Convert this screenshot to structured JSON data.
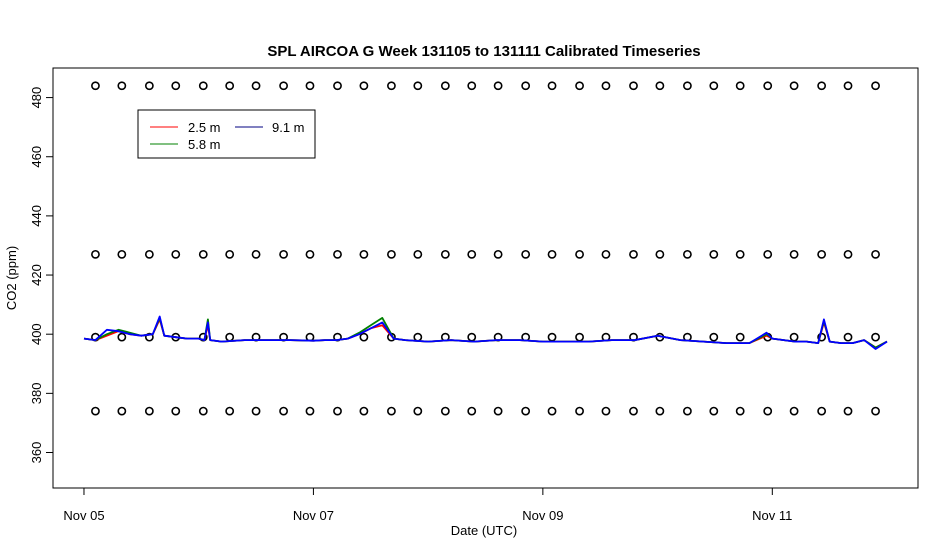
{
  "chart_data": {
    "type": "line",
    "title": "SPL AIRCOA G  Week 131105 to 131111  Calibrated Timeseries",
    "xlabel": "Date (UTC)",
    "ylabel": "CO2 (ppm)",
    "x_ticks": [
      {
        "value": 0,
        "label": "Nov 05"
      },
      {
        "value": 2,
        "label": "Nov 07"
      },
      {
        "value": 4,
        "label": "Nov 09"
      },
      {
        "value": 6,
        "label": "Nov 11"
      }
    ],
    "y_ticks": [
      360,
      380,
      400,
      420,
      440,
      460,
      480
    ],
    "xlim": [
      -0.27,
      7.27
    ],
    "ylim": [
      348,
      490
    ],
    "grid": false,
    "legend_position": "top-left",
    "legend": [
      {
        "label": "2.5 m",
        "color": "#ff0000"
      },
      {
        "label": "5.8 m",
        "color": "#008000"
      },
      {
        "label": "9.1 m",
        "color": "#000080"
      }
    ],
    "series": [
      {
        "name": "2.5 m",
        "color": "#ff0000",
        "x": [
          0.0,
          0.1,
          0.2,
          0.3,
          0.4,
          0.5,
          0.6,
          0.66,
          0.7,
          0.8,
          0.9,
          1.0,
          1.05,
          1.08,
          1.1,
          1.2,
          1.4,
          1.6,
          1.8,
          2.0,
          2.1,
          2.2,
          2.3,
          2.4,
          2.5,
          2.6,
          2.7,
          2.8,
          3.0,
          3.2,
          3.4,
          3.6,
          3.8,
          4.0,
          4.2,
          4.4,
          4.6,
          4.8,
          5.0,
          5.2,
          5.4,
          5.6,
          5.8,
          5.95,
          6.0,
          6.1,
          6.2,
          6.3,
          6.4,
          6.45,
          6.5,
          6.6,
          6.7,
          6.8,
          6.9,
          7.0
        ],
        "y": [
          398.5,
          398,
          399.5,
          401,
          400,
          399.5,
          400,
          405,
          399.5,
          399,
          398.5,
          398.5,
          398,
          403,
          398,
          397.5,
          398,
          398,
          398,
          397.8,
          398,
          398,
          398.5,
          400,
          402,
          403,
          398.5,
          398,
          397.5,
          398,
          397.5,
          398,
          398,
          397.5,
          397.5,
          397.5,
          398,
          398,
          399.5,
          398,
          397.5,
          397,
          397,
          399.5,
          398.5,
          398,
          397.5,
          397.5,
          397,
          404,
          397.5,
          397,
          397,
          398,
          395.5,
          397.5
        ]
      },
      {
        "name": "5.8 m",
        "color": "#008000",
        "x": [
          0.0,
          0.1,
          0.2,
          0.3,
          0.4,
          0.5,
          0.6,
          0.66,
          0.7,
          0.8,
          0.9,
          1.0,
          1.05,
          1.08,
          1.1,
          1.2,
          1.4,
          1.6,
          1.8,
          2.0,
          2.1,
          2.2,
          2.3,
          2.4,
          2.5,
          2.6,
          2.7,
          2.8,
          3.0,
          3.2,
          3.4,
          3.6,
          3.8,
          4.0,
          4.2,
          4.4,
          4.6,
          4.8,
          5.0,
          5.2,
          5.4,
          5.6,
          5.8,
          5.95,
          6.0,
          6.1,
          6.2,
          6.3,
          6.4,
          6.45,
          6.5,
          6.6,
          6.7,
          6.8,
          6.9,
          7.0
        ],
        "y": [
          398.5,
          398,
          400,
          401.5,
          400.5,
          399.5,
          400,
          405.5,
          399.5,
          399,
          398.5,
          398.5,
          398,
          405,
          398,
          397.5,
          398,
          398,
          398,
          397.8,
          398,
          398,
          398.5,
          400.5,
          403,
          405.5,
          398.5,
          398,
          397.5,
          398,
          397.5,
          398,
          398,
          397.5,
          397.5,
          397.5,
          398,
          398,
          399.5,
          398,
          397.5,
          397,
          397,
          400,
          398.5,
          398,
          397.5,
          397.5,
          397,
          404.5,
          397.5,
          397,
          397,
          398,
          395.5,
          397.5
        ]
      },
      {
        "name": "9.1 m",
        "color": "#0000ff",
        "x": [
          0.0,
          0.1,
          0.2,
          0.3,
          0.4,
          0.5,
          0.6,
          0.66,
          0.7,
          0.8,
          0.9,
          1.0,
          1.05,
          1.08,
          1.1,
          1.2,
          1.4,
          1.6,
          1.8,
          2.0,
          2.1,
          2.2,
          2.3,
          2.4,
          2.5,
          2.6,
          2.7,
          2.8,
          3.0,
          3.2,
          3.4,
          3.6,
          3.8,
          4.0,
          4.2,
          4.4,
          4.6,
          4.8,
          5.0,
          5.2,
          5.4,
          5.6,
          5.8,
          5.95,
          6.0,
          6.1,
          6.2,
          6.3,
          6.4,
          6.45,
          6.5,
          6.6,
          6.7,
          6.8,
          6.9,
          7.0
        ],
        "y": [
          398.5,
          398,
          401.5,
          401,
          400,
          399.5,
          400,
          406,
          399.5,
          399,
          398.5,
          398.5,
          398,
          404,
          398,
          397.5,
          398,
          398,
          398,
          397.8,
          398,
          398,
          398.5,
          400,
          402,
          404,
          398.5,
          398,
          397.5,
          398,
          397.5,
          398,
          398,
          397.5,
          397.5,
          397.5,
          398,
          398,
          399.5,
          398,
          397.5,
          397,
          397,
          400.5,
          398.5,
          398,
          397.5,
          397.5,
          397,
          405,
          397.5,
          397,
          397,
          398,
          395,
          397.5
        ]
      },
      {
        "name": "",
        "color": "#000000",
        "marker": "circle",
        "y_level": 484,
        "x": [
          0.1,
          0.33,
          0.57,
          0.8,
          1.04,
          1.27,
          1.5,
          1.74,
          1.97,
          2.21,
          2.44,
          2.68,
          2.91,
          3.15,
          3.38,
          3.61,
          3.85,
          4.08,
          4.32,
          4.55,
          4.79,
          5.02,
          5.26,
          5.49,
          5.72,
          5.96,
          6.19,
          6.43,
          6.66,
          6.9
        ]
      },
      {
        "name": "",
        "color": "#000000",
        "marker": "circle",
        "y_level": 427,
        "x": [
          0.1,
          0.33,
          0.57,
          0.8,
          1.04,
          1.27,
          1.5,
          1.74,
          1.97,
          2.21,
          2.44,
          2.68,
          2.91,
          3.15,
          3.38,
          3.61,
          3.85,
          4.08,
          4.32,
          4.55,
          4.79,
          5.02,
          5.26,
          5.49,
          5.72,
          5.96,
          6.19,
          6.43,
          6.66,
          6.9
        ]
      },
      {
        "name": "",
        "color": "#000000",
        "marker": "circle",
        "y_level": 399,
        "x": [
          0.1,
          0.33,
          0.57,
          0.8,
          1.04,
          1.27,
          1.5,
          1.74,
          1.97,
          2.21,
          2.44,
          2.68,
          2.91,
          3.15,
          3.38,
          3.61,
          3.85,
          4.08,
          4.32,
          4.55,
          4.79,
          5.02,
          5.26,
          5.49,
          5.72,
          5.96,
          6.19,
          6.43,
          6.66,
          6.9
        ]
      },
      {
        "name": "",
        "color": "#000000",
        "marker": "circle",
        "y_level": 374,
        "x": [
          0.1,
          0.33,
          0.57,
          0.8,
          1.04,
          1.27,
          1.5,
          1.74,
          1.97,
          2.21,
          2.44,
          2.68,
          2.91,
          3.15,
          3.38,
          3.61,
          3.85,
          4.08,
          4.32,
          4.55,
          4.79,
          5.02,
          5.26,
          5.49,
          5.72,
          5.96,
          6.19,
          6.43,
          6.66,
          6.9
        ]
      }
    ]
  }
}
